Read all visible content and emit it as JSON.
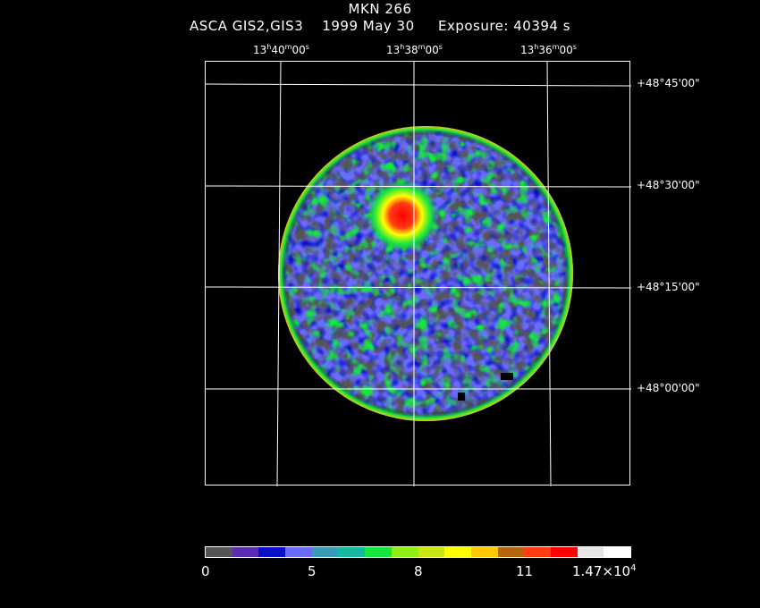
{
  "header": {
    "object": "MKN 266",
    "instrument": "ASCA GIS2,GIS3",
    "date": "1999 May 30",
    "exposure": "Exposure: 40394 s"
  },
  "ra_ticks": [
    {
      "h": "13",
      "m": "40",
      "s": "00"
    },
    {
      "h": "13",
      "m": "38",
      "s": "00"
    },
    {
      "h": "13",
      "m": "36",
      "s": "00"
    }
  ],
  "dec_ticks": [
    "+48°45'00\"",
    "+48°30'00\"",
    "+48°15'00\"",
    "+48°00'00\""
  ],
  "colorbar": {
    "colors": [
      "#555555",
      "#5a2db5",
      "#0a10c8",
      "#6a6aff",
      "#3a9ab8",
      "#14b9a0",
      "#14e640",
      "#8cf014",
      "#c8e614",
      "#ffff00",
      "#ffc800",
      "#b4640a",
      "#ff3c14",
      "#ff0000",
      "#e6e6e6",
      "#ffffff"
    ],
    "labels": [
      "0",
      "5",
      "8",
      "11",
      "1.47×10"
    ],
    "exponent": "4"
  }
}
